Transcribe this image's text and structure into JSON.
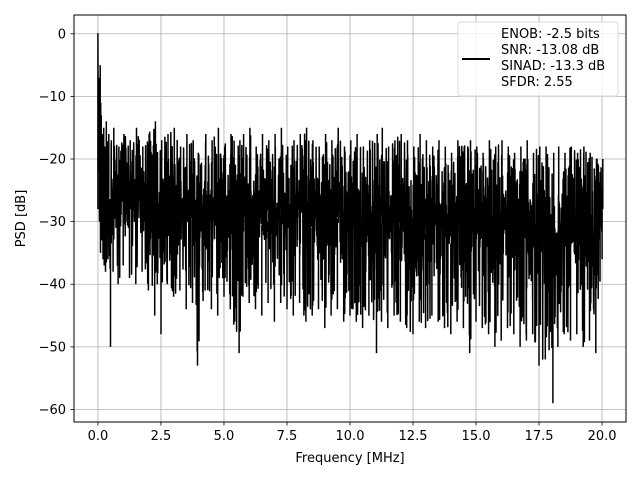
{
  "chart_data": {
    "type": "line",
    "xlabel": "Frequency [MHz]",
    "ylabel": "PSD [dB]",
    "xlim": [
      -0.95,
      20.95
    ],
    "ylim": [
      -62,
      3
    ],
    "xticks": [
      0.0,
      2.5,
      5.0,
      7.5,
      10.0,
      12.5,
      15.0,
      17.5,
      20.0
    ],
    "xtick_labels": [
      "0.0",
      "2.5",
      "5.0",
      "7.5",
      "10.0",
      "12.5",
      "15.0",
      "17.5",
      "20.0"
    ],
    "yticks": [
      0,
      -10,
      -20,
      -30,
      -40,
      -50,
      -60
    ],
    "ytick_labels": [
      "0",
      "−10",
      "−20",
      "−30",
      "−40",
      "−50",
      "−60"
    ],
    "grid": true,
    "legend_placement": "top-right",
    "legend_lines": [
      "ENOB: -2.5 bits",
      "SNR: -13.08 dB",
      "SINAD: -13.3 dB",
      "SFDR: 2.55"
    ],
    "line_color": "#000000",
    "series": [
      {
        "name": "ENOB: -2.5 bits",
        "x": [
          0.0,
          0.02,
          0.04,
          0.06,
          0.08,
          0.1,
          0.15,
          0.2,
          0.25,
          0.3,
          0.4,
          0.5,
          0.6,
          0.8,
          1.0,
          1.25,
          1.5,
          1.75,
          2.0,
          2.25,
          2.5,
          2.75,
          3.0,
          3.25,
          3.5,
          3.75,
          3.95,
          4.25,
          4.5,
          4.75,
          5.0,
          5.25,
          5.6,
          5.75,
          6.0,
          6.25,
          6.5,
          6.75,
          7.0,
          7.25,
          7.5,
          7.75,
          8.0,
          8.25,
          8.5,
          8.75,
          9.0,
          9.25,
          9.5,
          9.75,
          10.0,
          10.25,
          10.5,
          10.75,
          11.05,
          11.25,
          11.5,
          11.75,
          12.0,
          12.25,
          12.5,
          12.75,
          13.0,
          13.25,
          13.5,
          13.75,
          14.0,
          14.25,
          14.5,
          14.75,
          15.0,
          15.25,
          15.5,
          15.75,
          16.0,
          16.25,
          16.5,
          16.75,
          17.0,
          17.25,
          17.5,
          17.75,
          18.05,
          18.25,
          18.5,
          18.75,
          19.0,
          19.25,
          19.5,
          19.75,
          20.0
        ],
        "y_upper": [
          0,
          -3,
          -8,
          -5,
          -11,
          -13,
          -16,
          -15,
          -18,
          -14,
          -16,
          -17,
          -15,
          -18,
          -16,
          -17,
          -15,
          -18,
          -16,
          -14,
          -17,
          -16,
          -15,
          -18,
          -16,
          -17,
          -19,
          -16,
          -17,
          -15,
          -18,
          -16,
          -17,
          -16,
          -15,
          -18,
          -16,
          -17,
          -16,
          -15,
          -18,
          -17,
          -16,
          -15,
          -17,
          -18,
          -16,
          -17,
          -15,
          -18,
          -17,
          -16,
          -18,
          -17,
          -16,
          -15,
          -18,
          -17,
          -16,
          -17,
          -18,
          -16,
          -17,
          -18,
          -17,
          -18,
          -19,
          -17,
          -18,
          -17,
          -18,
          -19,
          -17,
          -18,
          -17,
          -18,
          -19,
          -18,
          -17,
          -19,
          -18,
          -18,
          -19,
          -18,
          -19,
          -18,
          -19,
          -18,
          -19,
          -20,
          -20
        ],
        "y_lower": [
          -28,
          -20,
          -22,
          -30,
          -29,
          -35,
          -33,
          -36,
          -37,
          -38,
          -36,
          -50,
          -38,
          -40,
          -37,
          -39,
          -40,
          -38,
          -41,
          -45,
          -48,
          -40,
          -42,
          -41,
          -44,
          -43,
          -53,
          -41,
          -44,
          -45,
          -42,
          -44,
          -51,
          -42,
          -43,
          -44,
          -45,
          -43,
          -46,
          -43,
          -44,
          -45,
          -43,
          -46,
          -45,
          -44,
          -47,
          -45,
          -44,
          -46,
          -45,
          -46,
          -47,
          -45,
          -51,
          -46,
          -47,
          -45,
          -46,
          -47,
          -48,
          -46,
          -47,
          -45,
          -46,
          -47,
          -48,
          -46,
          -47,
          -51,
          -46,
          -47,
          -48,
          -50,
          -49,
          -47,
          -48,
          -50,
          -49,
          -48,
          -53,
          -52,
          -59,
          -50,
          -48,
          -49,
          -48,
          -50,
          -49,
          -51,
          -36
        ]
      }
    ]
  }
}
